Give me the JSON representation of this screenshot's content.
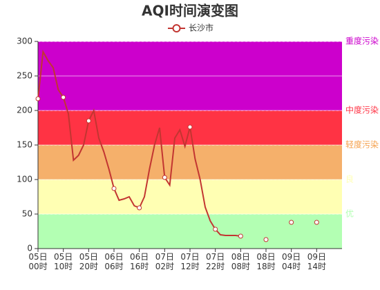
{
  "chart_data": {
    "type": "line",
    "title": "AQI时间演变图",
    "categories": [
      "05日\n00时",
      null,
      null,
      null,
      null,
      "05日\n10时",
      null,
      null,
      null,
      null,
      "05日\n20时",
      null,
      null,
      null,
      null,
      "06日\n06时",
      null,
      null,
      null,
      null,
      "06日\n16时",
      null,
      null,
      null,
      null,
      "07日\n02时",
      null,
      null,
      null,
      null,
      "07日\n12时",
      null,
      null,
      null,
      null,
      "07日\n22时",
      null,
      null,
      null,
      null,
      "08日\n08时",
      null,
      null,
      null,
      null,
      "08日\n18时",
      null,
      null,
      null,
      null,
      "09日\n04时",
      null,
      null,
      null,
      null,
      "09日\n14时",
      null,
      null,
      null,
      null,
      null
    ],
    "series": [
      {
        "name": "长沙市",
        "color": "#c23531",
        "values": [
          217,
          285,
          272,
          262,
          230,
          219,
          195,
          128,
          135,
          150,
          185,
          200,
          160,
          140,
          115,
          87,
          70,
          72,
          75,
          62,
          59,
          75,
          115,
          150,
          175,
          103,
          92,
          160,
          172,
          148,
          176,
          130,
          100,
          60,
          40,
          28,
          20,
          19,
          19,
          19,
          18,
          null,
          null,
          null,
          null,
          13,
          null,
          null,
          null,
          null,
          38,
          null,
          null,
          null,
          null,
          38,
          null,
          null,
          null,
          null,
          null
        ]
      }
    ],
    "bands": [
      {
        "name": "优",
        "from": 0,
        "to": 50,
        "color": "#b3ffb3",
        "label_color": "#b3ffb3"
      },
      {
        "name": "良",
        "from": 50,
        "to": 100,
        "color": "#ffffb3",
        "label_color": "#ffffb3"
      },
      {
        "name": "轻度污染",
        "from": 100,
        "to": 150,
        "color": "#f5b06b",
        "label_color": "#f5a04b"
      },
      {
        "name": "中度污染",
        "from": 150,
        "to": 200,
        "color": "#ff3344",
        "label_color": "#ff3344"
      },
      {
        "name": "重度污染",
        "from": 200,
        "to": 300,
        "color": "#cc00cc",
        "label_color": "#cc00cc"
      }
    ],
    "ylim": [
      0,
      300
    ],
    "yticks": [
      0,
      50,
      100,
      150,
      200,
      250,
      300
    ],
    "grid": true,
    "legend": "top"
  }
}
